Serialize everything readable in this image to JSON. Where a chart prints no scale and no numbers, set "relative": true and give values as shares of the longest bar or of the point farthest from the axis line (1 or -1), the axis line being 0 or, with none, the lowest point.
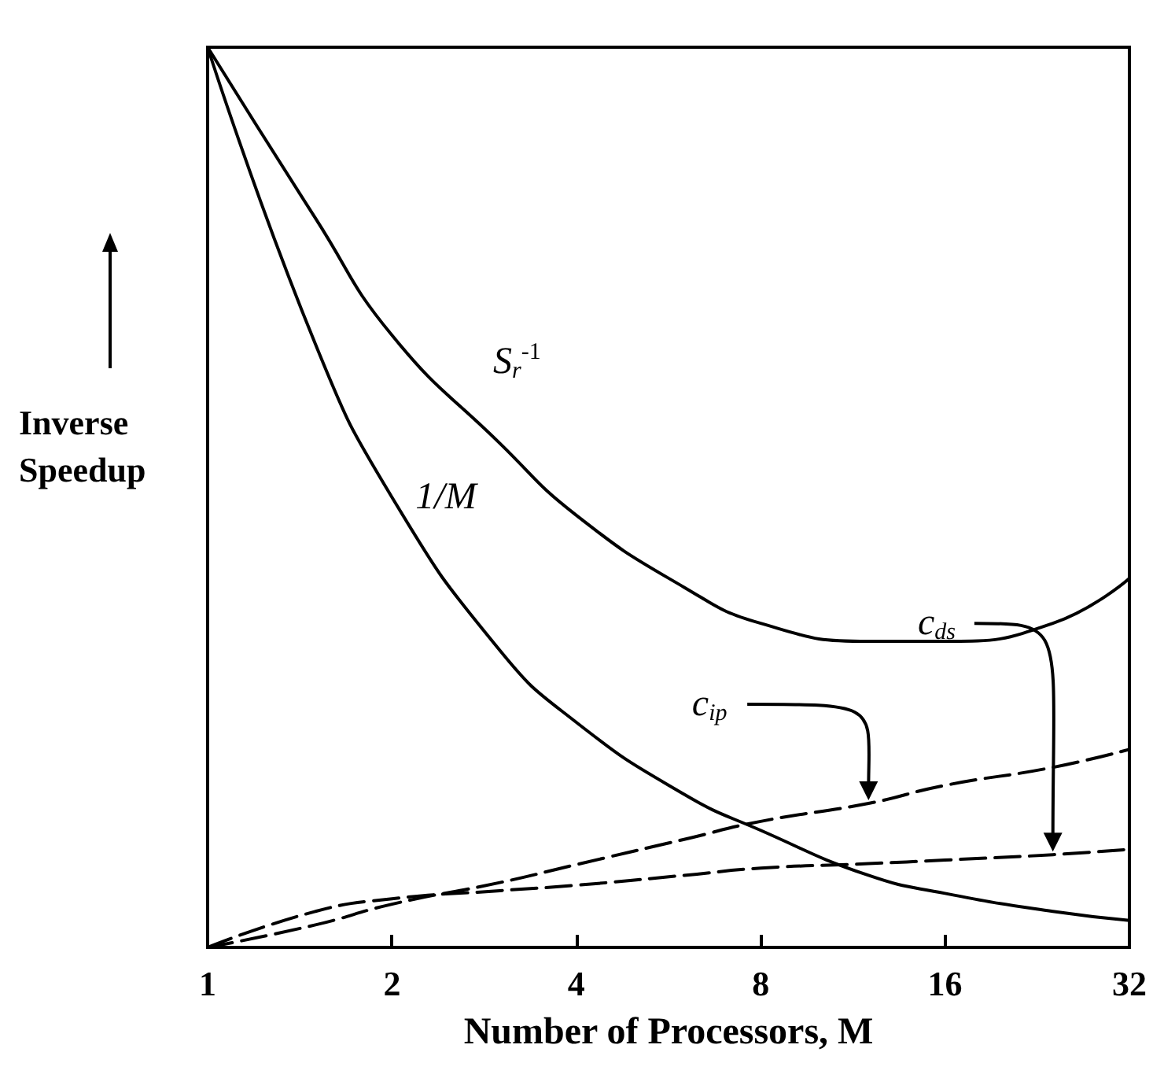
{
  "chart_data": {
    "type": "line",
    "relative": true,
    "xlabel": "Number of Processors, M",
    "ylabel": "Inverse Speedup",
    "log": "x",
    "xlim": [
      1,
      32
    ],
    "xticks": [
      1,
      2,
      4,
      8,
      16,
      32
    ],
    "grid": false,
    "marker": "none",
    "x": [
      1,
      1.5,
      2,
      3,
      4,
      6,
      8,
      12,
      16,
      24,
      32
    ],
    "series": [
      {
        "name": "S$_{r}$$^{-1}$",
        "color": "#000000",
        "line_style": "solid",
        "values": [
          1,
          0.81,
          0.68,
          0.56,
          0.48,
          0.4,
          0.36,
          0.34,
          0.34,
          0.36,
          0.41
        ]
      },
      {
        "name": "1/M",
        "color": "#000000",
        "line_style": "solid",
        "values": [
          1,
          0.67,
          0.5,
          0.33,
          0.25,
          0.17,
          0.13,
          0.08,
          0.06,
          0.04,
          0.03
        ]
      },
      {
        "name": "c$_{ip}$",
        "color": "#000000",
        "line_style": "dashed",
        "values": [
          0,
          0.025,
          0.048,
          0.072,
          0.092,
          0.12,
          0.14,
          0.16,
          0.18,
          0.2,
          0.22
        ]
      },
      {
        "name": "c$_{ds}$",
        "color": "#000000",
        "line_style": "dashed",
        "values": [
          0,
          0.04,
          0.054,
          0.063,
          0.069,
          0.08,
          0.088,
          0.093,
          0.097,
          0.103,
          0.109
        ]
      }
    ]
  }
}
